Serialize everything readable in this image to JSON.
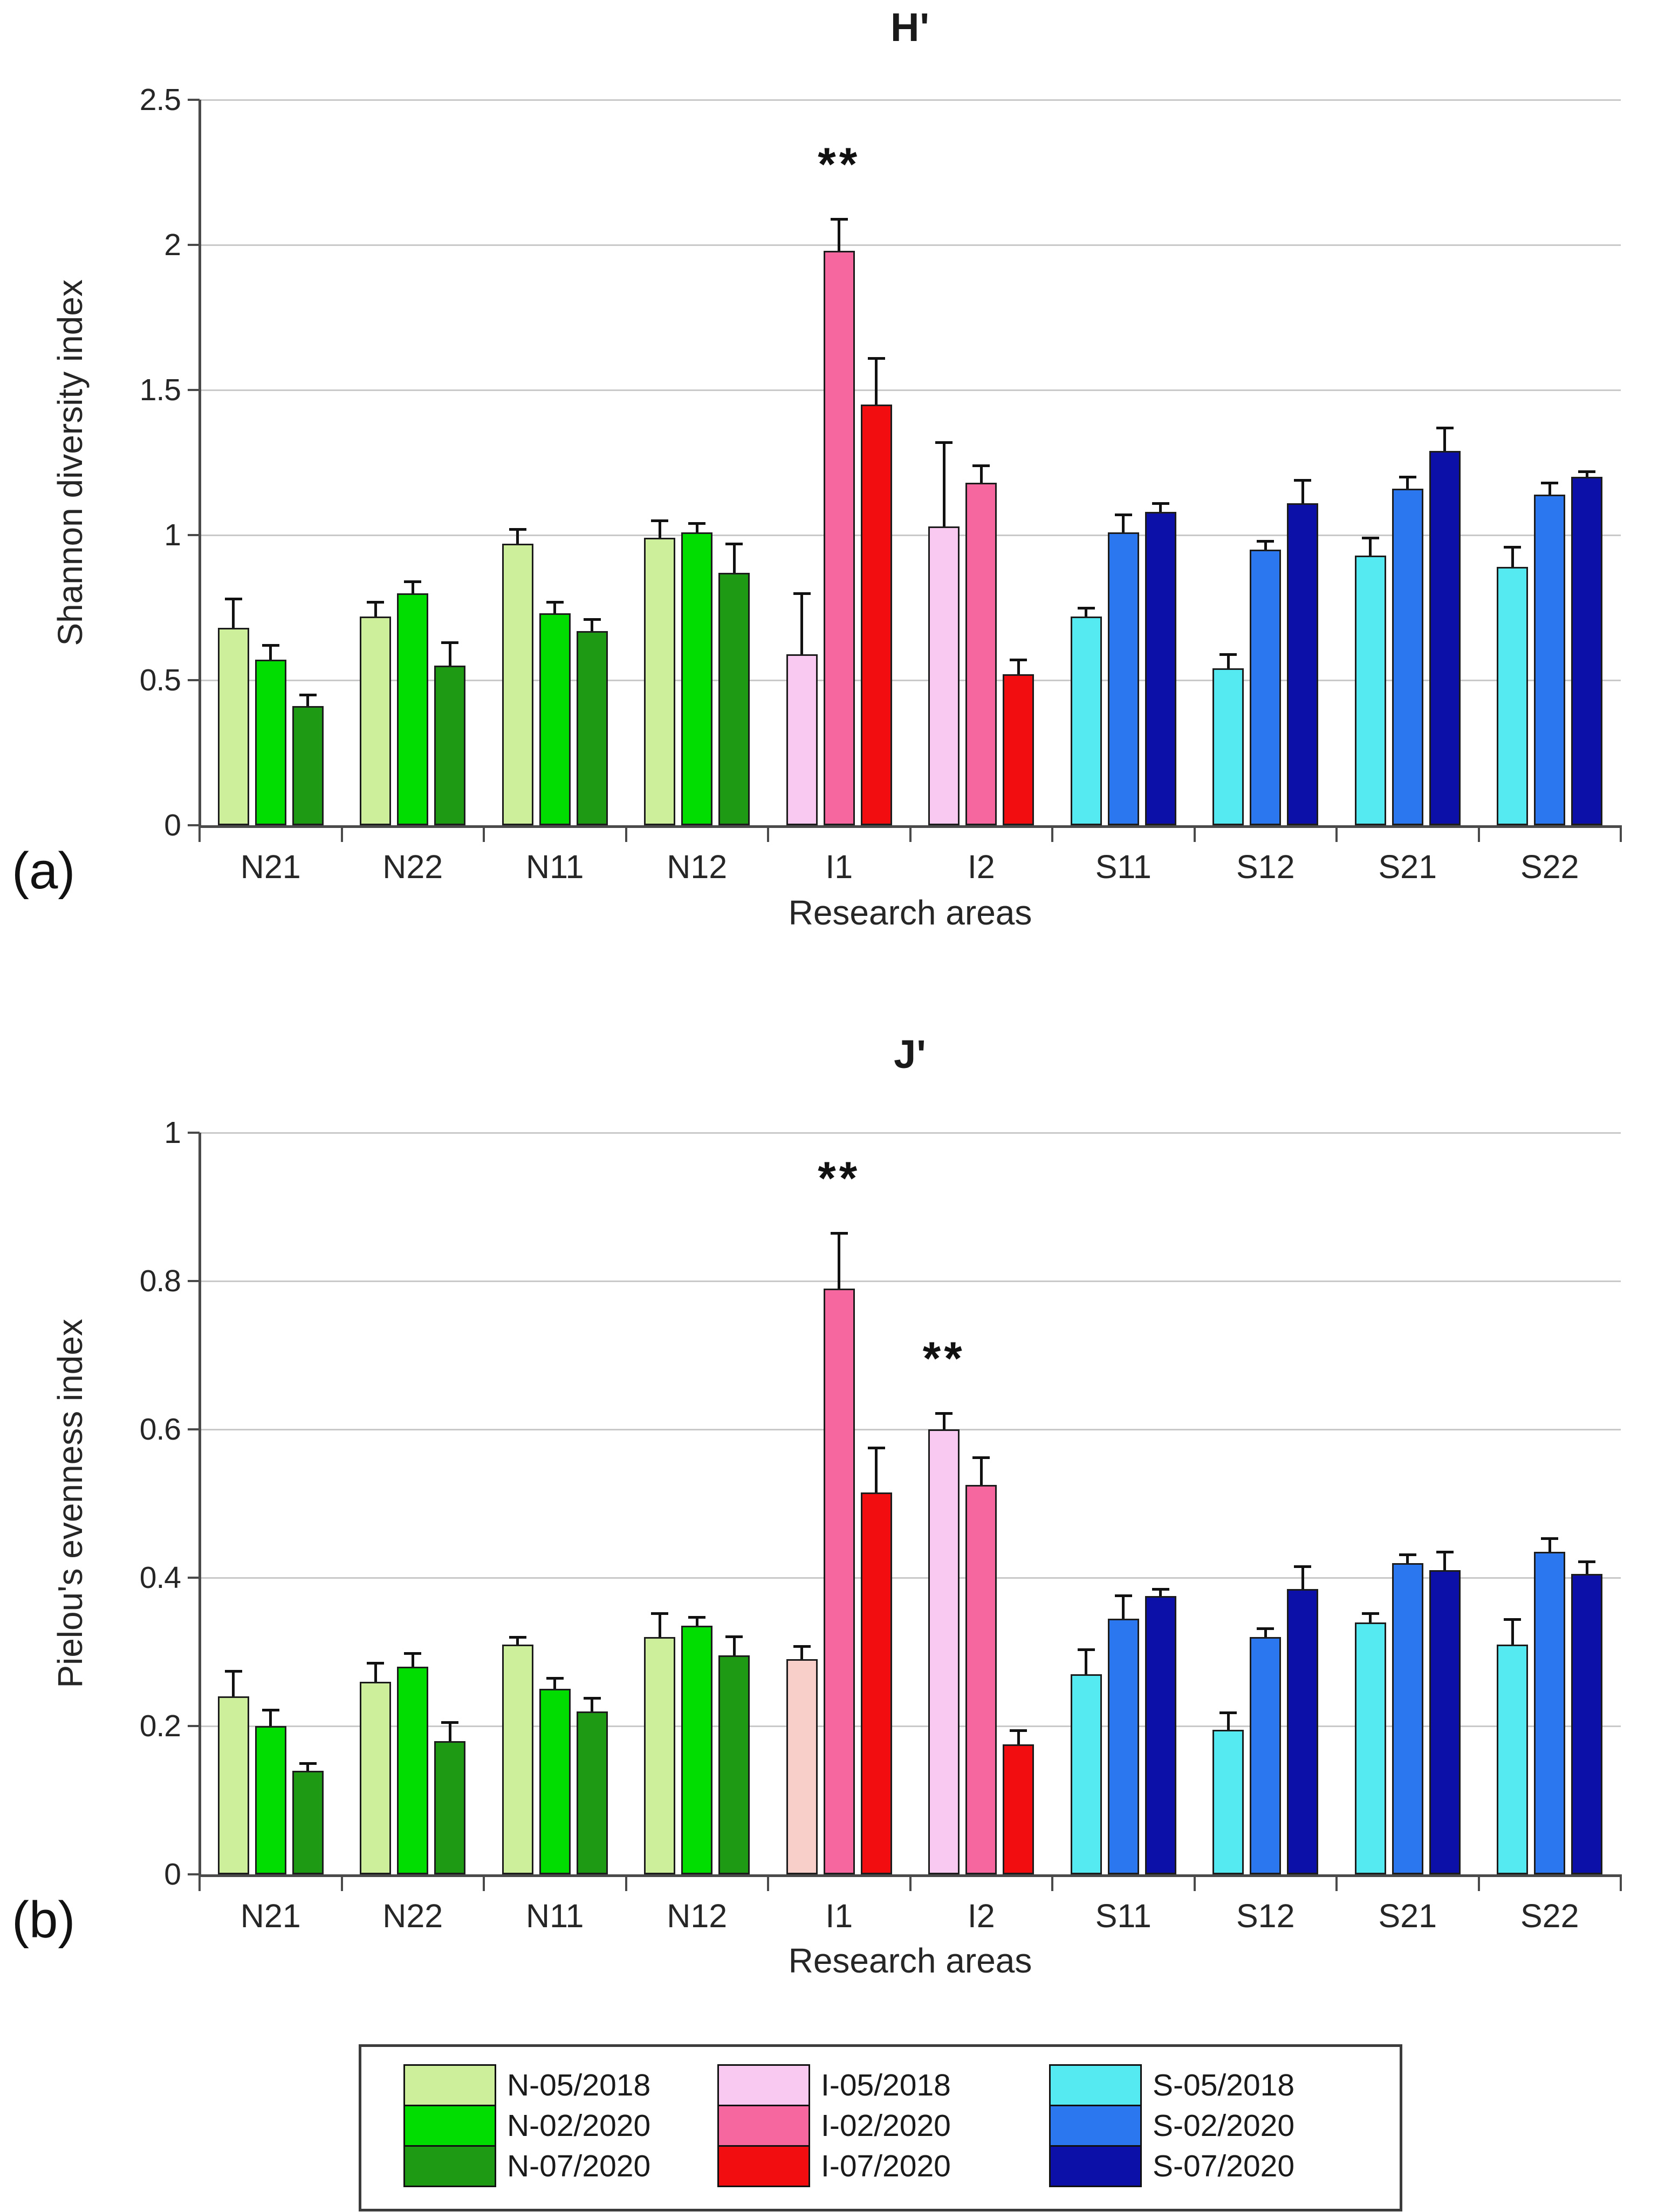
{
  "figure": {
    "panel_a_label": "(a)",
    "panel_b_label": "(b)"
  },
  "palette": {
    "N": [
      "#cdef9b",
      "#01dd01",
      "#1f9a14"
    ],
    "I": [
      "#f9c9f2",
      "#f5679e",
      "#f20d11"
    ],
    "S": [
      "#55e9f2",
      "#2b77f0",
      "#0d10a8"
    ]
  },
  "legend": {
    "columns": [
      {
        "entries": [
          {
            "label": "N-05/2018",
            "color": "#cdef9b"
          },
          {
            "label": "N-02/2020",
            "color": "#01dd01"
          },
          {
            "label": "N-07/2020",
            "color": "#1f9a14"
          }
        ]
      },
      {
        "entries": [
          {
            "label": "I-05/2018",
            "color": "#f9c9f2"
          },
          {
            "label": "I-02/2020",
            "color": "#f5679e"
          },
          {
            "label": "I-07/2020",
            "color": "#f20d11"
          }
        ]
      },
      {
        "entries": [
          {
            "label": "S-05/2018",
            "color": "#55e9f2"
          },
          {
            "label": "S-02/2020",
            "color": "#2b77f0"
          },
          {
            "label": "S-07/2020",
            "color": "#0d10a8"
          }
        ]
      }
    ]
  },
  "chart_data": [
    {
      "type": "bar",
      "panel": "a",
      "title": "H'",
      "ylabel": "Shannon diversity index",
      "xlabel": "Research areas",
      "ylim": [
        0,
        2.5
      ],
      "yticks": [
        "2.5",
        "2",
        "1.5",
        "1",
        "0.5",
        "0"
      ],
      "grid": true,
      "legend_position": "below-figure",
      "categories": [
        "N21",
        "N22",
        "N11",
        "N12",
        "I1",
        "I2",
        "S11",
        "S12",
        "S21",
        "S22"
      ],
      "series": [
        {
          "name": "05/2018",
          "values": [
            0.68,
            0.72,
            0.97,
            0.99,
            0.59,
            1.03,
            0.72,
            0.54,
            0.93,
            0.89
          ],
          "errors": [
            0.1,
            0.05,
            0.05,
            0.06,
            0.21,
            0.29,
            0.03,
            0.05,
            0.06,
            0.07
          ]
        },
        {
          "name": "02/2020",
          "values": [
            0.57,
            0.8,
            0.73,
            1.01,
            1.98,
            1.18,
            1.01,
            0.95,
            1.16,
            1.14
          ],
          "errors": [
            0.05,
            0.04,
            0.04,
            0.03,
            0.11,
            0.06,
            0.06,
            0.03,
            0.04,
            0.04
          ]
        },
        {
          "name": "07/2020",
          "values": [
            0.41,
            0.55,
            0.67,
            0.87,
            1.45,
            0.52,
            1.08,
            1.11,
            1.29,
            1.2
          ],
          "errors": [
            0.04,
            0.08,
            0.04,
            0.1,
            0.16,
            0.05,
            0.03,
            0.08,
            0.08,
            0.02
          ]
        }
      ],
      "color_overrides": [],
      "annotations": [
        {
          "category": "I1",
          "series_index": 1,
          "text": "**"
        }
      ]
    },
    {
      "type": "bar",
      "panel": "b",
      "title": "J'",
      "ylabel": "Pielou's evenness index",
      "xlabel": "Research areas",
      "ylim": [
        0,
        1
      ],
      "yticks": [
        "1",
        "0.8",
        "0.6",
        "0.4",
        "0.2",
        "0"
      ],
      "grid": true,
      "legend_position": "below-figure",
      "categories": [
        "N21",
        "N22",
        "N11",
        "N12",
        "I1",
        "I2",
        "S11",
        "S12",
        "S21",
        "S22"
      ],
      "series": [
        {
          "name": "05/2018",
          "values": [
            0.24,
            0.26,
            0.31,
            0.32,
            0.29,
            0.6,
            0.27,
            0.195,
            0.34,
            0.31
          ],
          "errors": [
            0.034,
            0.025,
            0.01,
            0.032,
            0.018,
            0.022,
            0.033,
            0.023,
            0.012,
            0.034
          ]
        },
        {
          "name": "02/2020",
          "values": [
            0.2,
            0.28,
            0.25,
            0.335,
            0.79,
            0.525,
            0.345,
            0.32,
            0.42,
            0.435
          ],
          "errors": [
            0.022,
            0.018,
            0.015,
            0.012,
            0.075,
            0.037,
            0.031,
            0.012,
            0.011,
            0.018
          ]
        },
        {
          "name": "07/2020",
          "values": [
            0.14,
            0.18,
            0.22,
            0.295,
            0.515,
            0.175,
            0.375,
            0.385,
            0.41,
            0.405
          ],
          "errors": [
            0.01,
            0.025,
            0.018,
            0.026,
            0.06,
            0.019,
            0.01,
            0.03,
            0.025,
            0.017
          ]
        }
      ],
      "color_overrides": [
        {
          "category": "I1",
          "series_index": 0,
          "color": "#f8cfc9"
        }
      ],
      "annotations": [
        {
          "category": "I1",
          "series_index": 1,
          "text": "**"
        },
        {
          "category": "I2",
          "series_index": 0,
          "text": "**"
        }
      ]
    }
  ]
}
